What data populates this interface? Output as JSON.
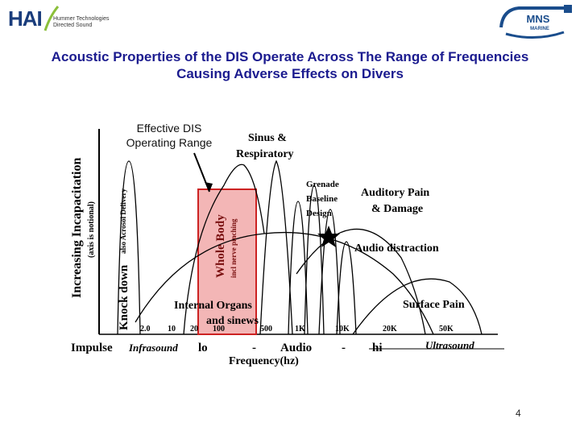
{
  "header": {
    "hai_logo_text": "HAI",
    "hai_subtitle_line1": "Hummer Technologies",
    "hai_subtitle_line2": "Directed Sound",
    "mns_logo_text": "MNS",
    "mns_logo_sub": "MARINE"
  },
  "title": "Acoustic Properties of the DIS Operate Across The Range of Frequencies Causing Adverse Effects on Divers",
  "effective_label_line1": "Effective DIS",
  "effective_label_line2": "Operating Range",
  "diagram": {
    "y_axis_label": "Increasing Incapacitation",
    "y_axis_note": "(axis is notional)",
    "knock_down": "Knock down",
    "acrosol": "also Acrosol Delivery",
    "x_axis_label": "Frequency(hz)",
    "x_ticks": [
      "2.0",
      "10",
      "20",
      "100",
      "500",
      "1K",
      "10K",
      "20K",
      "50K"
    ],
    "bottom_row": {
      "impulse": "Impulse",
      "infrasound": "Infrasound",
      "lo": "lo",
      "dash1": "-",
      "audio": "Audio",
      "dash2": "-",
      "hi": "hi",
      "ultrasound": "Ultrasound"
    },
    "labels": {
      "sinus": "Sinus &",
      "respiratory": "Respiratory",
      "grenade": "Grenade",
      "baseline": "Baseline",
      "design": "Design",
      "auditory_pain": "Auditory Pain",
      "damage": "& Damage",
      "audio_distraction": "Audio distraction",
      "surface_pain": "Surface Pain",
      "whole_body": "Whole Body",
      "nerve_pinching": "incl nerve pinching",
      "internal_organs": "Internal Organs",
      "sinews": "and sinews"
    }
  },
  "page_number": "4"
}
